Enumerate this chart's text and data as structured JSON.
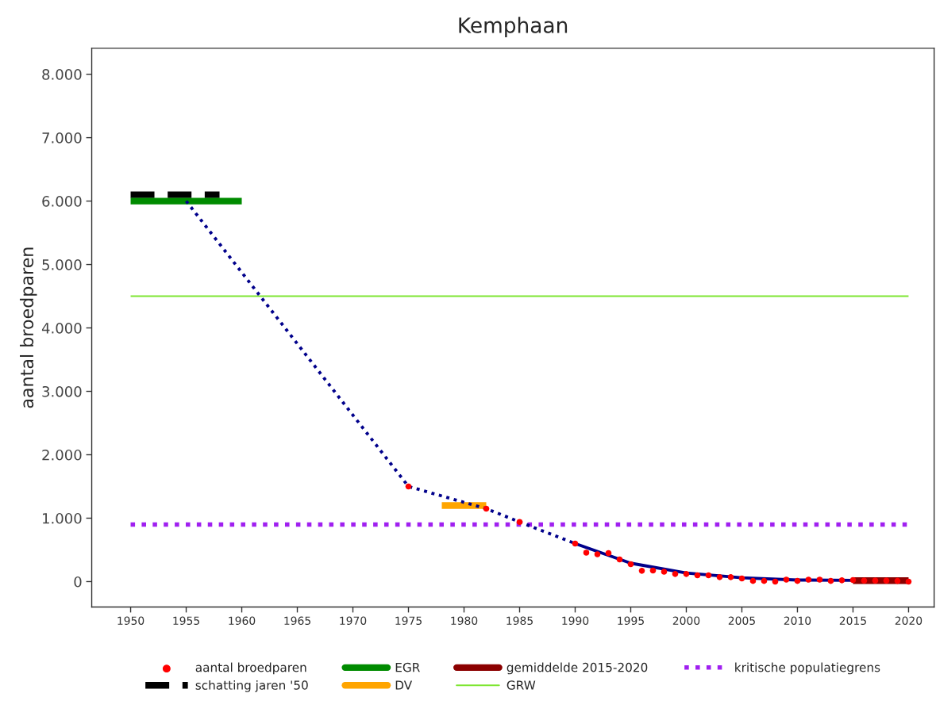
{
  "chart_data": {
    "type": "line",
    "title": "Kemphaan",
    "ylabel": "aantal broedparen",
    "xlim": [
      1946.5,
      2022.3
    ],
    "ylim": [
      -400,
      8410
    ],
    "xticks": [
      1950,
      1955,
      1960,
      1965,
      1970,
      1975,
      1980,
      1985,
      1990,
      1995,
      2000,
      2005,
      2010,
      2015,
      2020
    ],
    "yticks": [
      {
        "value": 0,
        "label": "0"
      },
      {
        "value": 1000,
        "label": "1.000"
      },
      {
        "value": 2000,
        "label": "2.000"
      },
      {
        "value": 3000,
        "label": "3.000"
      },
      {
        "value": 4000,
        "label": "4.000"
      },
      {
        "value": 5000,
        "label": "5.000"
      },
      {
        "value": 6000,
        "label": "6.000"
      },
      {
        "value": 7000,
        "label": "7.000"
      },
      {
        "value": 8000,
        "label": "8.000"
      }
    ],
    "grid": false,
    "legend": "bottom",
    "series": [
      {
        "color": "#00008b",
        "line_style": "dotted",
        "x": [
          1955,
          1975,
          1982,
          1985,
          1990
        ],
        "values": [
          6000,
          1500,
          1150,
          940,
          600
        ]
      },
      {
        "color": "#00008b",
        "line_style": "solid",
        "x": [
          1990,
          1995,
          2000,
          2005,
          2010,
          2015
        ],
        "values": [
          600,
          290,
          135,
          60,
          25,
          20
        ]
      },
      {
        "name": "schatting jaren '50",
        "color": "#000000",
        "line_style": "dashed",
        "x": [
          1950,
          1958
        ],
        "values": [
          6100,
          6100
        ]
      },
      {
        "name": "EGR",
        "color": "#008b00",
        "line_style": "solid",
        "x": [
          1950,
          1960
        ],
        "values": [
          6000,
          6000
        ]
      },
      {
        "name": "DV",
        "color": "#ffa500",
        "line_style": "solid",
        "x": [
          1978,
          1982
        ],
        "values": [
          1200,
          1200
        ]
      },
      {
        "name": "gemiddelde 2015-2020",
        "color": "#8b0000",
        "line_style": "solid",
        "x": [
          2015,
          2020
        ],
        "values": [
          15,
          15
        ]
      },
      {
        "type": "scatter",
        "name": "aantal broedparen",
        "color": "#ff0000",
        "marker": "circle",
        "x": [
          1975,
          1982,
          1985,
          1990,
          1991,
          1992,
          1993,
          1994,
          1995,
          1996,
          1997,
          1998,
          1999,
          2000,
          2001,
          2002,
          2003,
          2004,
          2005,
          2006,
          2007,
          2008,
          2009,
          2010,
          2011,
          2012,
          2013,
          2014,
          2015,
          2016,
          2017,
          2018,
          2019,
          2020
        ],
        "values": [
          1500,
          1150,
          940,
          600,
          455,
          430,
          450,
          350,
          275,
          170,
          175,
          155,
          120,
          120,
          100,
          100,
          70,
          70,
          50,
          10,
          10,
          0,
          30,
          10,
          30,
          30,
          10,
          20,
          25,
          15,
          15,
          15,
          10,
          0
        ]
      }
    ],
    "ref_lines": [
      {
        "axis": "y",
        "value": 4500,
        "label": "GRW",
        "color": "#7fe633",
        "line_style": "solid"
      },
      {
        "axis": "y",
        "value": 900,
        "label": "kritische populatiegrens",
        "color": "#a020f0",
        "line_style": "dotted"
      }
    ]
  }
}
